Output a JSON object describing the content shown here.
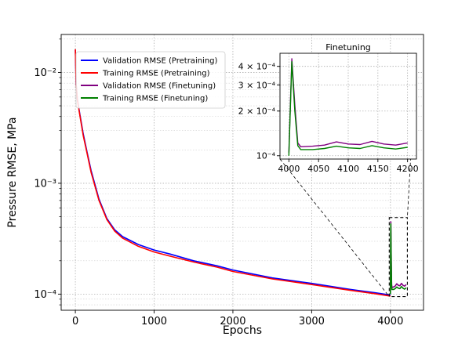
{
  "chart_data": [
    {
      "type": "line",
      "title": "",
      "xlabel": "Epochs",
      "ylabel": "Pressure RMSE, MPa",
      "xlim": [
        -180,
        4420
      ],
      "ylim": [
        7.15e-05,
        0.022
      ],
      "yscale": "log",
      "grid": true,
      "legend_position": "upper-left",
      "x_ticks": [
        0,
        1000,
        2000,
        3000,
        4000
      ],
      "x_tick_labels": [
        "0",
        "1000",
        "2000",
        "3000",
        "4000"
      ],
      "y_ticks": [
        0.0001,
        0.001,
        0.01
      ],
      "y_tick_labels": [
        "10⁻⁴",
        "10⁻³",
        "10⁻²"
      ],
      "series": [
        {
          "name": "Validation RMSE (Pretraining)",
          "color": "#0000ff",
          "x": [
            0,
            10,
            25,
            50,
            100,
            150,
            200,
            300,
            400,
            500,
            600,
            800,
            1000,
            1200,
            1500,
            1800,
            2000,
            2500,
            3000,
            3500,
            3800,
            4000
          ],
          "y": [
            0.016,
            0.0078,
            0.0058,
            0.0045,
            0.0028,
            0.0019,
            0.0013,
            0.00072,
            0.00048,
            0.00038,
            0.00033,
            0.00028,
            0.00025,
            0.00023,
            0.0002,
            0.00018,
            0.000165,
            0.00014,
            0.000125,
            0.00011,
            0.000103,
            9.8e-05
          ]
        },
        {
          "name": "Training RMSE (Pretraining)",
          "color": "#ff0000",
          "x": [
            0,
            10,
            25,
            50,
            100,
            150,
            200,
            300,
            400,
            500,
            600,
            800,
            1000,
            1200,
            1500,
            1800,
            2000,
            2500,
            3000,
            3500,
            3800,
            4000
          ],
          "y": [
            0.0162,
            0.0077,
            0.0057,
            0.0044,
            0.0027,
            0.00185,
            0.00125,
            0.0007,
            0.00047,
            0.00037,
            0.00032,
            0.00027,
            0.00024,
            0.00022,
            0.000195,
            0.000175,
            0.00016,
            0.000137,
            0.000122,
            0.000108,
            0.000101,
            9.6e-05
          ]
        },
        {
          "name": "Validation RMSE (Finetuning)",
          "color": "#800080",
          "x": [
            4000,
            4005,
            4010,
            4015,
            4020,
            4040,
            4060,
            4080,
            4100,
            4120,
            4140,
            4160,
            4180,
            4200
          ],
          "y": [
            0.000105,
            0.00045,
            0.00022,
            0.000122,
            0.000115,
            0.000116,
            0.000118,
            0.000124,
            0.00012,
            0.000119,
            0.000125,
            0.00012,
            0.000118,
            0.000122
          ]
        },
        {
          "name": "Training RMSE (Finetuning)",
          "color": "#008000",
          "x": [
            4000,
            4005,
            4010,
            4015,
            4020,
            4040,
            4060,
            4080,
            4100,
            4120,
            4140,
            4160,
            4180,
            4200
          ],
          "y": [
            0.0001,
            0.00043,
            0.0002,
            0.000117,
            0.00011,
            0.00011,
            0.000112,
            0.000116,
            0.000113,
            0.000112,
            0.000117,
            0.000113,
            0.000111,
            0.000114
          ]
        }
      ]
    },
    {
      "type": "line",
      "title": "Finetuning",
      "xlabel": "",
      "ylabel": "",
      "xlim": [
        3985,
        4215
      ],
      "ylim": [
        9.5e-05,
        0.00049
      ],
      "yscale": "log",
      "grid": true,
      "x_ticks": [
        4000,
        4050,
        4100,
        4150,
        4200
      ],
      "x_tick_labels": [
        "4000",
        "4050",
        "4100",
        "4150",
        "4200"
      ],
      "y_ticks": [
        0.0001,
        0.0002,
        0.0003,
        0.0004
      ],
      "y_tick_labels": [
        "10⁻⁴",
        "2 × 10⁻⁴",
        "3 × 10⁻⁴",
        "4 × 10⁻⁴"
      ],
      "series": [
        {
          "name": "Validation RMSE (Finetuning)",
          "color": "#800080",
          "x": [
            4000,
            4005,
            4010,
            4015,
            4020,
            4040,
            4060,
            4080,
            4100,
            4120,
            4140,
            4160,
            4180,
            4200
          ],
          "y": [
            0.000105,
            0.00045,
            0.00022,
            0.000122,
            0.000115,
            0.000116,
            0.000118,
            0.000124,
            0.00012,
            0.000119,
            0.000125,
            0.00012,
            0.000118,
            0.000122
          ]
        },
        {
          "name": "Training RMSE (Finetuning)",
          "color": "#008000",
          "x": [
            4000,
            4005,
            4010,
            4015,
            4020,
            4040,
            4060,
            4080,
            4100,
            4120,
            4140,
            4160,
            4180,
            4200
          ],
          "y": [
            0.0001,
            0.00043,
            0.0002,
            0.000117,
            0.00011,
            0.00011,
            0.000112,
            0.000116,
            0.000113,
            0.000112,
            0.000117,
            0.000113,
            0.000111,
            0.000114
          ]
        }
      ]
    }
  ]
}
